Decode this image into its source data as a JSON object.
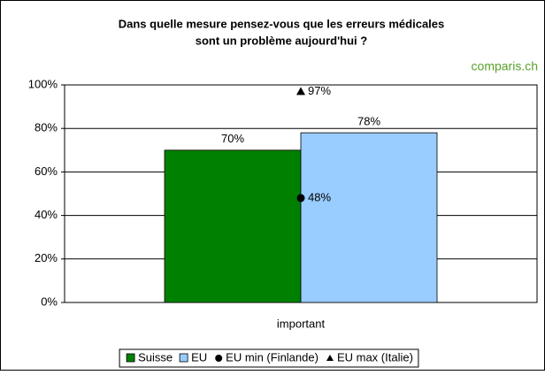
{
  "chart_data": {
    "type": "bar",
    "title": [
      "Dans quelle mesure pensez-vous que les erreurs médicales",
      "sont un problème aujourd'hui ?"
    ],
    "annotation": "comparis.ch",
    "categories": [
      "important"
    ],
    "series": [
      {
        "name": "Suisse",
        "color": "#008000",
        "mark": "bar",
        "values": [
          70
        ],
        "value_labels": [
          "70%"
        ]
      },
      {
        "name": "EU",
        "color": "#99ccff",
        "mark": "bar",
        "values": [
          78
        ],
        "value_labels": [
          "78%"
        ]
      },
      {
        "name": "EU min (Finlande)",
        "color": "#000000",
        "mark": "circle",
        "values": [
          48
        ],
        "value_labels": [
          "48%"
        ]
      },
      {
        "name": "EU max (Italie)",
        "color": "#000000",
        "mark": "triangle",
        "values": [
          97
        ],
        "value_labels": [
          "97%"
        ]
      }
    ],
    "ylim": [
      0,
      100
    ],
    "yticks": [
      {
        "value": 0,
        "label": "0%"
      },
      {
        "value": 20,
        "label": "20%"
      },
      {
        "value": 40,
        "label": "40%"
      },
      {
        "value": 60,
        "label": "60%"
      },
      {
        "value": 80,
        "label": "80%"
      },
      {
        "value": 100,
        "label": "100%"
      }
    ],
    "grid": true,
    "legend": "bottom"
  }
}
